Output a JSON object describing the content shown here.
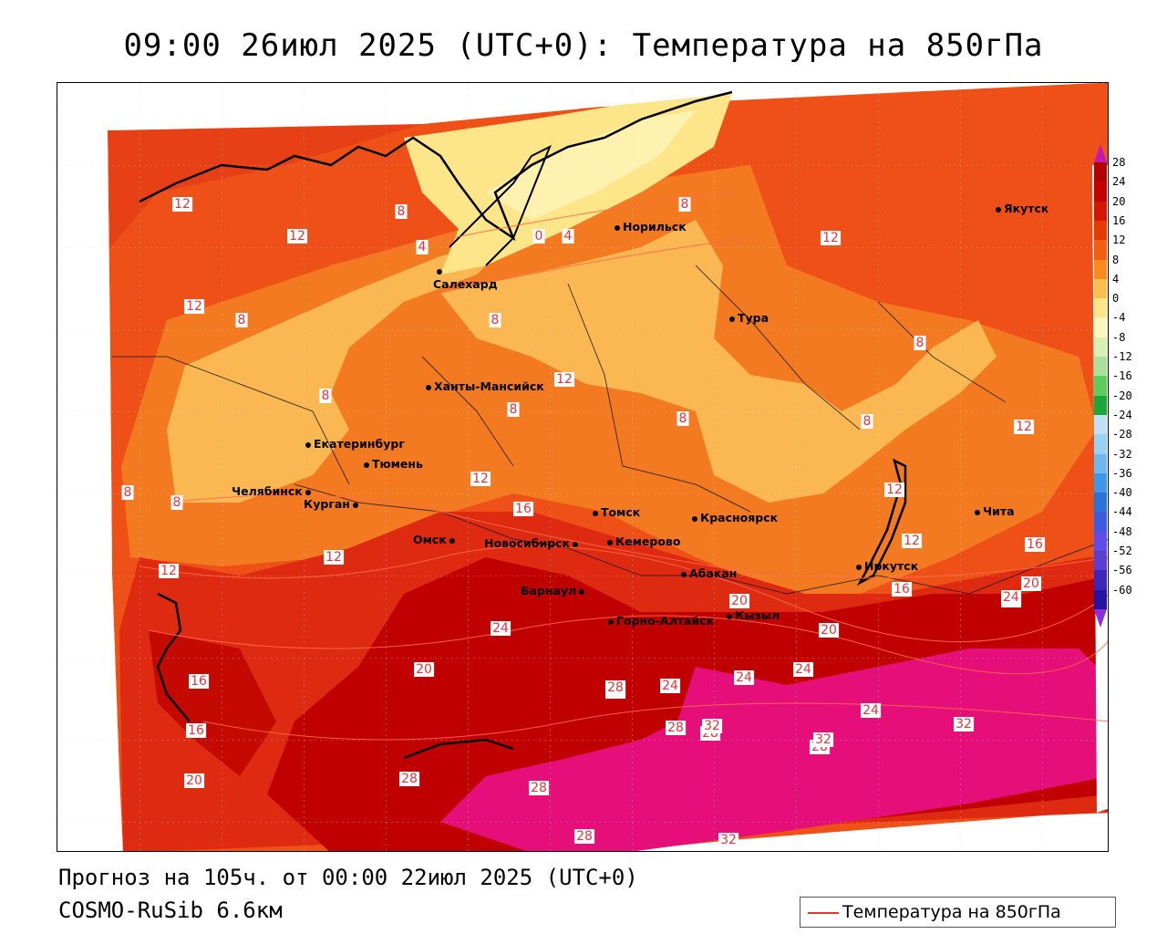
{
  "title": "09:00 26июл 2025 (UTC+0): Температура на 850гПа",
  "footer": {
    "forecast": "Прогноз на 105ч. от 00:00 22июл 2025 (UTC+0)",
    "model": "COSMO-RuSib 6.6км"
  },
  "legend": {
    "label": "Температура на 850гПа"
  },
  "scale": {
    "ticks": [
      "28",
      "24",
      "20",
      "16",
      "12",
      "8",
      "4",
      "0",
      "-4",
      "-8",
      "-12",
      "-16",
      "-20",
      "-24",
      "-28",
      "-32",
      "-36",
      "-40",
      "-44",
      "-48",
      "-52",
      "-56",
      "-60"
    ],
    "colors": [
      "#b00000",
      "#c40000",
      "#d41800",
      "#e53a00",
      "#f06010",
      "#fa8a20",
      "#fbbf50",
      "#fde58a",
      "#fff6bb",
      "#d8f0b4",
      "#a8e09c",
      "#5ccc5c",
      "#1aa83a",
      "#bfe0f5",
      "#9ad0f2",
      "#6fb8ee",
      "#3d98e8",
      "#2a74d8",
      "#3b5ae0",
      "#5e4de8",
      "#5a3fd0",
      "#3b26b8",
      "#2612a0"
    ]
  },
  "cities": [
    {
      "name": "Норильск"
    },
    {
      "name": "Якутск"
    },
    {
      "name": "Салехард"
    },
    {
      "name": "Тура"
    },
    {
      "name": "Ханты-Мансийск"
    },
    {
      "name": "Екатеринбург"
    },
    {
      "name": "Тюмень"
    },
    {
      "name": "Челябинск"
    },
    {
      "name": "Курган"
    },
    {
      "name": "Омск"
    },
    {
      "name": "Новосибирск"
    },
    {
      "name": "Томск"
    },
    {
      "name": "Красноярск"
    },
    {
      "name": "Кемерово"
    },
    {
      "name": "Барнаул"
    },
    {
      "name": "Абакан"
    },
    {
      "name": "Горно-Алтайск"
    },
    {
      "name": "Кызыл"
    },
    {
      "name": "Иркутск"
    },
    {
      "name": "Чита"
    }
  ],
  "contour_labels": [
    "12",
    "12",
    "8",
    "4",
    "0",
    "4",
    "8",
    "12",
    "12",
    "8",
    "8",
    "8",
    "12",
    "8",
    "8",
    "8",
    "8",
    "12",
    "8",
    "8",
    "12",
    "16",
    "12",
    "12",
    "16",
    "12",
    "12",
    "16",
    "20",
    "20",
    "24",
    "20",
    "16",
    "16",
    "20",
    "24",
    "24",
    "28",
    "24",
    "28",
    "24",
    "32",
    "28",
    "24",
    "28",
    "28",
    "32",
    "32",
    "28",
    "24",
    "32",
    "28",
    "20",
    "24"
  ]
}
